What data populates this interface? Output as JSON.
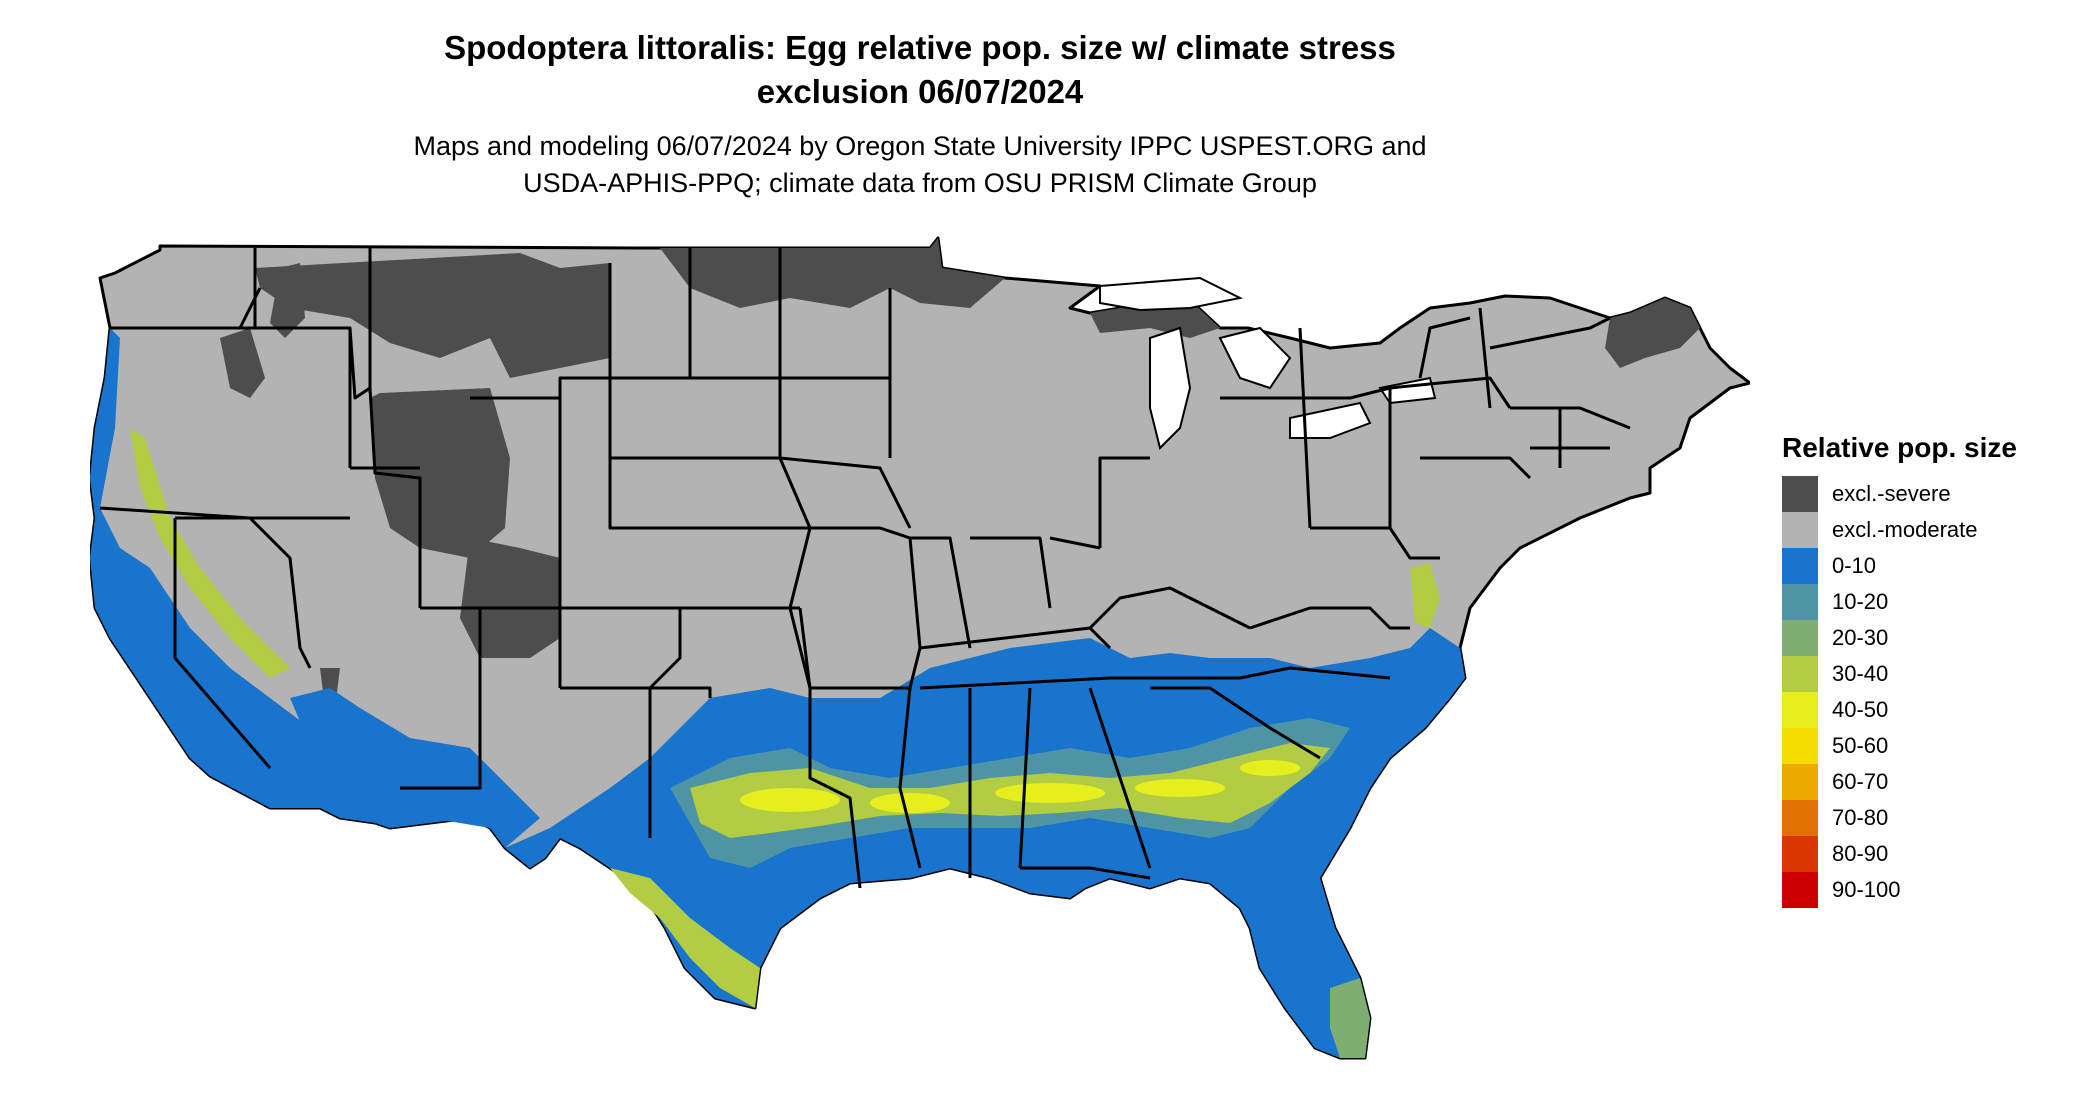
{
  "header": {
    "title_line1": "Spodoptera littoralis: Egg relative pop. size w/ climate stress",
    "title_line2": "exclusion 06/07/2024",
    "subtitle_line1": "Maps and modeling 06/07/2024 by Oregon State University IPPC USPEST.ORG and",
    "subtitle_line2": "USDA-APHIS-PPQ; climate data from OSU PRISM Climate Group"
  },
  "legend": {
    "title": "Relative pop. size",
    "items": [
      {
        "label": "excl.-severe",
        "color": "#4d4d4d"
      },
      {
        "label": "excl.-moderate",
        "color": "#b3b3b3"
      },
      {
        "label": "0-10",
        "color": "#1874cd"
      },
      {
        "label": "10-20",
        "color": "#4f94a5"
      },
      {
        "label": "20-30",
        "color": "#7fae72"
      },
      {
        "label": "30-40",
        "color": "#b2cc44"
      },
      {
        "label": "40-50",
        "color": "#e6ee1e"
      },
      {
        "label": "50-60",
        "color": "#f5dc00"
      },
      {
        "label": "60-70",
        "color": "#eeaa00"
      },
      {
        "label": "70-80",
        "color": "#e07000"
      },
      {
        "label": "80-90",
        "color": "#d83800"
      },
      {
        "label": "90-100",
        "color": "#cd0000"
      }
    ]
  }
}
